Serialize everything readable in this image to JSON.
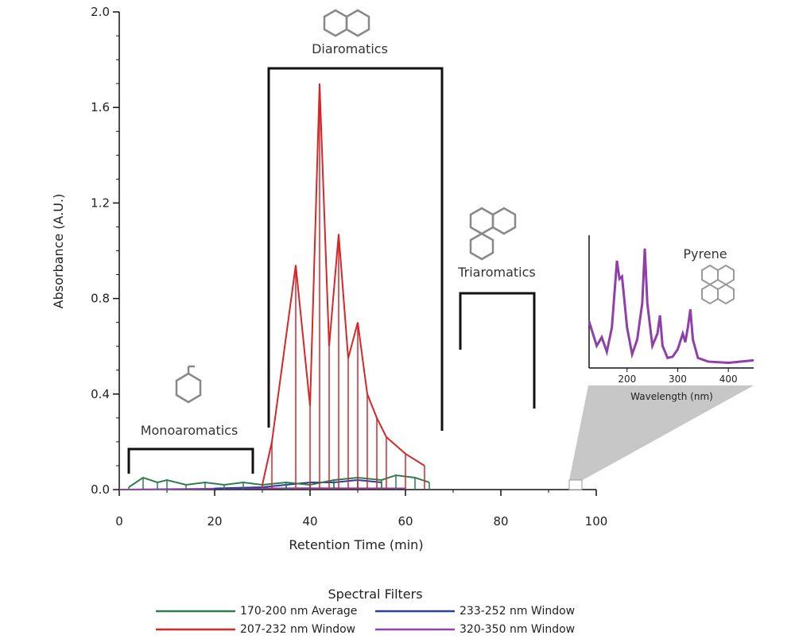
{
  "chart_data": {
    "type": "line",
    "xlabel": "Retention Time (min)",
    "ylabel": "Absorbance (A.U.)",
    "xlim": [
      0,
      100
    ],
    "ylim": [
      0,
      2.0
    ],
    "x_ticks": [
      "0",
      "20",
      "40",
      "60",
      "80",
      "100"
    ],
    "y_ticks": [
      "0.0",
      "0.4",
      "0.8",
      "1.2",
      "1.6",
      "2.0"
    ],
    "legend_title": "Spectral Filters",
    "legend_placement": "bottom",
    "series": [
      {
        "name": "170-200 nm Average",
        "color": "#2e7d4f",
        "x": [
          2,
          5,
          8,
          10,
          14,
          18,
          22,
          26,
          30,
          35,
          40,
          45,
          50,
          55,
          58,
          62,
          65
        ],
        "y": [
          0.01,
          0.05,
          0.03,
          0.04,
          0.02,
          0.03,
          0.02,
          0.03,
          0.02,
          0.03,
          0.02,
          0.04,
          0.05,
          0.04,
          0.06,
          0.05,
          0.03
        ]
      },
      {
        "name": "207-232 nm Window",
        "color": "#d62728",
        "x": [
          30,
          32,
          37,
          40,
          42,
          44,
          46,
          48,
          50,
          52,
          54,
          56,
          60,
          64
        ],
        "y": [
          0.02,
          0.2,
          0.94,
          0.35,
          1.7,
          0.6,
          1.07,
          0.55,
          0.7,
          0.4,
          0.3,
          0.22,
          0.15,
          0.1
        ]
      },
      {
        "name": "233-252 nm Window",
        "color": "#2b3f9c",
        "x": [
          20,
          30,
          35,
          40,
          45,
          50,
          55
        ],
        "y": [
          0.005,
          0.01,
          0.02,
          0.03,
          0.03,
          0.04,
          0.03
        ]
      },
      {
        "name": "320-350 nm Window",
        "color": "#8e44ad",
        "x": [
          0,
          20,
          40,
          60
        ],
        "y": [
          0.0,
          0.004,
          0.006,
          0.005
        ]
      }
    ],
    "annotations": [
      "Monoaromatics",
      "Diaromatics",
      "Triaromatics"
    ],
    "inset": {
      "title": "Pyrene",
      "xlabel": "Wavelength (nm)",
      "x_ticks": [
        "200",
        "300",
        "400"
      ],
      "xlim": [
        125,
        450
      ],
      "color": "#8e3fa8",
      "x": [
        125,
        140,
        150,
        160,
        170,
        180,
        185,
        190,
        200,
        210,
        220,
        230,
        235,
        240,
        250,
        260,
        265,
        270,
        280,
        290,
        300,
        310,
        315,
        320,
        325,
        330,
        340,
        360,
        400,
        450
      ],
      "y": [
        0.35,
        0.15,
        0.22,
        0.1,
        0.3,
        0.85,
        0.7,
        0.72,
        0.3,
        0.08,
        0.2,
        0.5,
        0.95,
        0.5,
        0.15,
        0.25,
        0.4,
        0.15,
        0.05,
        0.06,
        0.12,
        0.25,
        0.18,
        0.3,
        0.45,
        0.2,
        0.05,
        0.02,
        0.01,
        0.03
      ]
    }
  }
}
